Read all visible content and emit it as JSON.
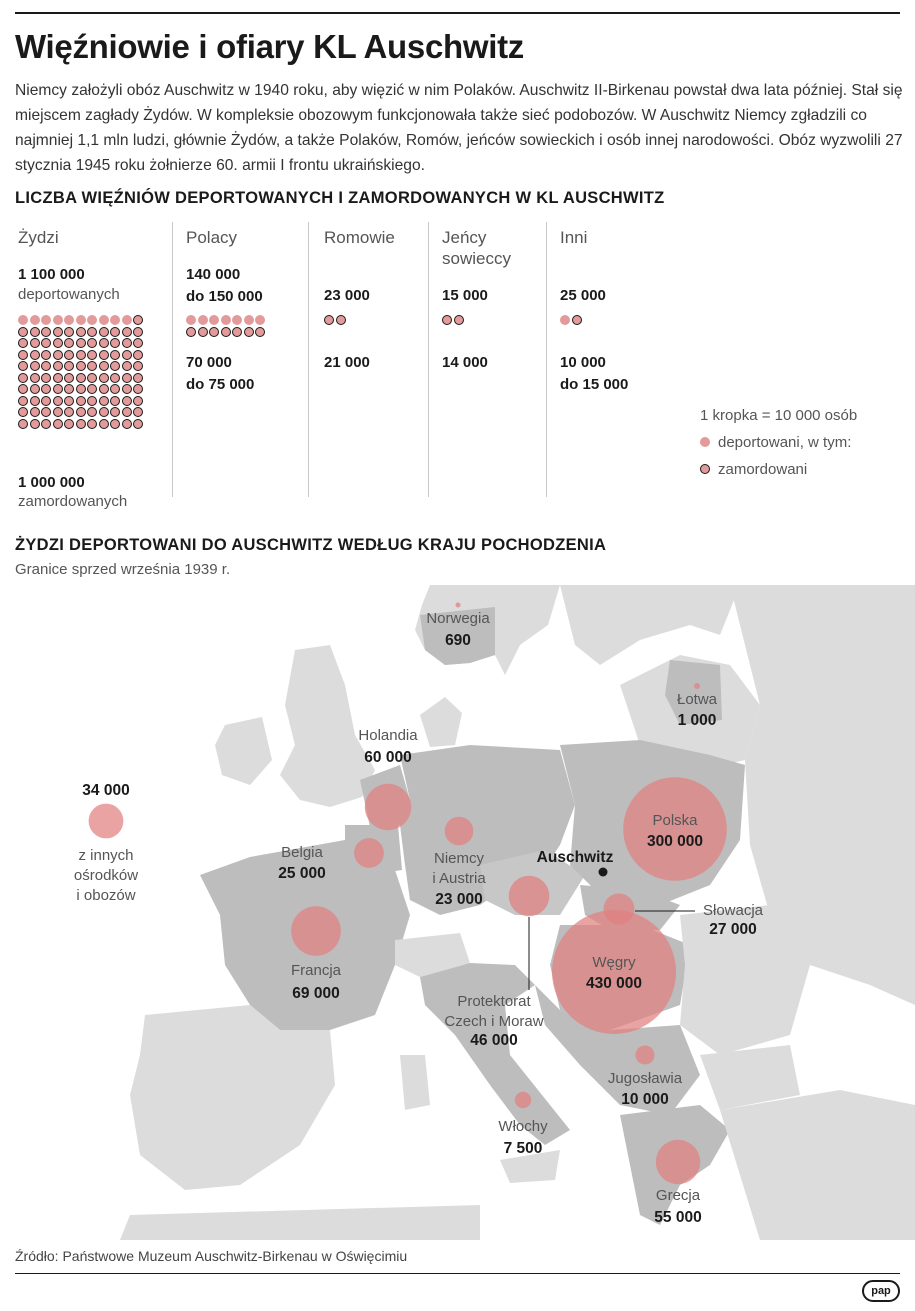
{
  "title": "Więźniowie i ofiary KL Auschwitz",
  "intro": "Niemcy założyli obóz Auschwitz w 1940 roku, aby więzić w nim Polaków. Auschwitz II-Birkenau powstał dwa lata później. Stał się miejscem zagłady Żydów. W kompleksie obozowym funkcjonowała także sieć podobozów. W Auschwitz Niemcy zgładzili co najmniej 1,1 mln ludzi, głównie Żydów, a także Polaków, Romów, jeńców sowieckich i osób innej narodowości. Obóz wyzwolili 27 stycznia 1945 roku żołnierze 60. armii I frontu ukraińskiego.",
  "section1": {
    "title": "LICZBA WIĘŹNIÓW DEPORTOWANYCH I ZAMORDOWANYCH W KL AUSCHWITZ",
    "legend": {
      "scale": "1 kropka = 10 000 osób",
      "deported": "deportowani, w tym:",
      "murdered": "zamordowani"
    }
  },
  "section2": {
    "title": "ŻYDZI DEPORTOWANI DO AUSCHWITZ WEDŁUG KRAJU POCHODZENIA",
    "subtitle": "Granice sprzed września 1939 r.",
    "auschwitz_label": "Auschwitz"
  },
  "chart_data": [
    {
      "type": "pictogram",
      "unit": "1 kropka = 10 000 osób",
      "groups": [
        {
          "label": "Żydzi",
          "deported": "1 100 000",
          "deported_note": "deportowanych",
          "murdered": "1 000 000",
          "murdered_note": "zamordowanych",
          "deported_value": 1100000,
          "murdered_value": 1000000
        },
        {
          "label": "Polacy",
          "deported": "140 000\ndo 150 000",
          "murdered": "70 000\ndo 75 000",
          "deported_value": 145000,
          "murdered_value": 72500
        },
        {
          "label": "Romowie",
          "deported": "23 000",
          "murdered": "21 000",
          "deported_value": 23000,
          "murdered_value": 21000
        },
        {
          "label": "Jeńcy\nsowieccy",
          "deported": "15 000",
          "murdered": "14 000",
          "deported_value": 15000,
          "murdered_value": 14000
        },
        {
          "label": "Inni",
          "deported": "25 000",
          "murdered": "10 000\ndo 15 000",
          "deported_value": 25000,
          "murdered_value": 12500
        }
      ]
    },
    {
      "type": "bubble_map",
      "countries": [
        {
          "name": "Norwegia",
          "value": 690,
          "label": "690"
        },
        {
          "name": "Łotwa",
          "value": 1000,
          "label": "1 000"
        },
        {
          "name": "Holandia",
          "value": 60000,
          "label": "60 000"
        },
        {
          "name": "Belgia",
          "value": 25000,
          "label": "25 000"
        },
        {
          "name": "Niemcy\ni Austria",
          "value": 23000,
          "label": "23 000"
        },
        {
          "name": "Polska",
          "value": 300000,
          "label": "300 000"
        },
        {
          "name": "Słowacja",
          "value": 27000,
          "label": "27 000"
        },
        {
          "name": "Francja",
          "value": 69000,
          "label": "69 000"
        },
        {
          "name": "Węgry",
          "value": 430000,
          "label": "430 000"
        },
        {
          "name": "Protektorat\nCzech i Moraw",
          "value": 46000,
          "label": "46 000"
        },
        {
          "name": "Jugosławia",
          "value": 10000,
          "label": "10 000"
        },
        {
          "name": "Włochy",
          "value": 7500,
          "label": "7 500"
        },
        {
          "name": "Grecja",
          "value": 55000,
          "label": "55 000"
        },
        {
          "name": "z innych\nośrodków\ni obozów",
          "value": 34000,
          "label": "34 000"
        }
      ]
    }
  ],
  "source": "Źródło: Państwowe Muzeum Auschwitz-Birkenau w Oświęcimiu",
  "logo": "pap",
  "colors": {
    "bubble": "#e07f7f",
    "dot": "#e39a9a",
    "land_focus": "#bdbdbd",
    "land_other": "#dcdcdc",
    "sea": "#ffffff"
  }
}
